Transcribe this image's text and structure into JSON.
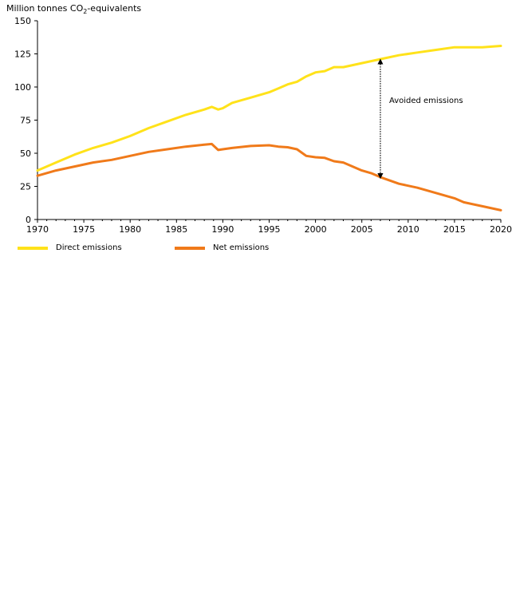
{
  "chart_data": {
    "type": "line",
    "title": "",
    "ylabel_prefix": "Million tonnes CO",
    "ylabel_sub": "2",
    "ylabel_suffix": "-equivalents",
    "xlabel": "",
    "ylim": [
      0,
      150
    ],
    "xlim": [
      1970,
      2020
    ],
    "yticks": [
      "0",
      "25",
      "50",
      "75",
      "100",
      "125",
      "150"
    ],
    "xticks": [
      "1970",
      "1975",
      "1980",
      "1985",
      "1990",
      "1995",
      "2000",
      "2005",
      "2010",
      "2015",
      "2020"
    ],
    "grid": false,
    "annotation": {
      "text": "Avoided emissions",
      "x": 2007,
      "y_top": 121,
      "y_bottom": 31
    },
    "series": [
      {
        "name": "Direct emissions",
        "color": "#ffe21a",
        "x": [
          1970,
          1972,
          1974,
          1976,
          1978,
          1980,
          1982,
          1984,
          1986,
          1988,
          1988.8,
          1989.5,
          1990,
          1991,
          1993,
          1995,
          1996,
          1997,
          1998,
          1999,
          2000,
          2001,
          2002,
          2003,
          2005,
          2007,
          2009,
          2011,
          2013,
          2015,
          2016,
          2018,
          2020
        ],
        "values": [
          37,
          43,
          49,
          54,
          58,
          63,
          69,
          74,
          79,
          83,
          85,
          83,
          84,
          88,
          92,
          96,
          99,
          102,
          104,
          108,
          111,
          112,
          115,
          115,
          118,
          121,
          124,
          126,
          128,
          130,
          130,
          130,
          131
        ]
      },
      {
        "name": "Net emissions",
        "color": "#f07a1a",
        "x": [
          1970,
          1972,
          1974,
          1976,
          1978,
          1980,
          1982,
          1984,
          1986,
          1988,
          1988.8,
          1989.5,
          1990,
          1991,
          1993,
          1995,
          1996,
          1997,
          1998,
          1999,
          2000,
          2001,
          2002,
          2003,
          2005,
          2006,
          2007,
          2009,
          2011,
          2013,
          2015,
          2016,
          2018,
          2020
        ],
        "values": [
          33,
          37,
          40,
          43,
          45,
          48,
          51,
          53,
          55,
          56.5,
          57,
          52.5,
          53,
          54,
          55.5,
          56,
          55,
          54.5,
          53,
          48,
          47,
          46.5,
          44,
          43,
          37,
          35,
          32,
          27,
          24,
          20,
          16,
          13,
          10,
          7
        ]
      }
    ]
  }
}
